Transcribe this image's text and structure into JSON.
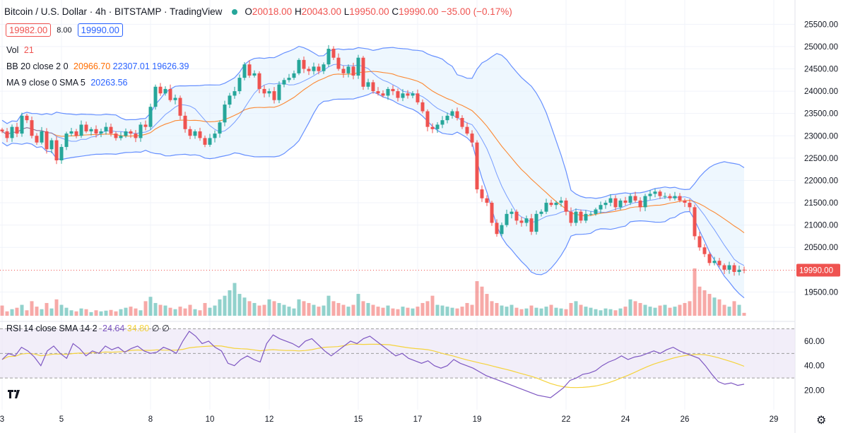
{
  "header": {
    "title": "Bitcoin / U.S. Dollar · 4h · BITSTAMP · TradingView",
    "ohlc": [
      {
        "label": "O",
        "value": "20018.00"
      },
      {
        "label": "H",
        "value": "20043.00"
      },
      {
        "label": "L",
        "value": "19950.00"
      },
      {
        "label": "C",
        "value": "19990.00"
      },
      {
        "label": "",
        "value": "−35.00 (−0.17%)"
      }
    ],
    "sell_price": "19982.00",
    "spread": "8.00",
    "buy_price": "19990.00"
  },
  "indicators": {
    "vol": {
      "name": "Vol",
      "value": "21"
    },
    "bb": {
      "name": "BB 20 close 2 0",
      "basis": "20966.70",
      "upper": "22307.01",
      "lower": "19626.39"
    },
    "ma": {
      "name": "MA 9 close 0 SMA 5",
      "value": "20263.56"
    },
    "rsi": {
      "name": "RSI 14 close SMA 14 2",
      "value": "24.64",
      "sma": "34.80",
      "extra1": "∅",
      "extra2": "∅"
    }
  },
  "colors": {
    "up": "#26a69a",
    "down": "#ef5350",
    "bb_line": "#2962ff",
    "bb_basis": "#ff6d00",
    "rsi_line": "#7e57c2",
    "rsi_sma": "#f5d33c",
    "rsi_band": "#ede7f6"
  },
  "icons": {
    "logo": "tradingview-logo-icon",
    "settings": "gear-icon",
    "status": "status-dot-icon"
  },
  "chart_data": {
    "type": "candlestick",
    "price_axis_ticks": [
      "25500.00",
      "25000.00",
      "24500.00",
      "24000.00",
      "23500.00",
      "23000.00",
      "22500.00",
      "22000.00",
      "21500.00",
      "21000.00",
      "20500.00",
      "19500.00"
    ],
    "price_range": [
      19000,
      25600
    ],
    "last_price_label": "19990.00",
    "last_price": 19990,
    "rsi_axis_ticks": [
      "60.00",
      "40.00",
      "20.00"
    ],
    "rsi_range": [
      10,
      72
    ],
    "rsi_bands": [
      30,
      50,
      70
    ],
    "x_ticks": [
      {
        "label": "3",
        "i": 0
      },
      {
        "label": "5",
        "i": 12
      },
      {
        "label": "8",
        "i": 30
      },
      {
        "label": "10",
        "i": 42
      },
      {
        "label": "12",
        "i": 54
      },
      {
        "label": "15",
        "i": 72
      },
      {
        "label": "17",
        "i": 84
      },
      {
        "label": "19",
        "i": 96
      },
      {
        "label": "22",
        "i": 114
      },
      {
        "label": "24",
        "i": 126
      },
      {
        "label": "26",
        "i": 138
      },
      {
        "label": "29",
        "i": 156
      }
    ],
    "n_bars": 151,
    "path": [
      23100,
      22950,
      23200,
      23050,
      23450,
      23350,
      23000,
      22850,
      23100,
      22700,
      22900,
      22450,
      22750,
      23050,
      23100,
      23000,
      23250,
      23100,
      23150,
      23050,
      23100,
      23200,
      23050,
      22950,
      23000,
      23100,
      23050,
      22950,
      23250,
      23200,
      23650,
      24100,
      23950,
      24050,
      23800,
      23850,
      23450,
      23150,
      23000,
      23100,
      22950,
      22800,
      22950,
      23050,
      23300,
      23700,
      23900,
      24000,
      24300,
      24600,
      24350,
      24400,
      24050,
      23950,
      24000,
      23800,
      24150,
      24250,
      24300,
      24400,
      24700,
      24500,
      24450,
      24550,
      24450,
      24600,
      24950,
      24750,
      24500,
      24400,
      24550,
      24350,
      24750,
      24100,
      24200,
      24000,
      23950,
      23900,
      24050,
      24000,
      23850,
      23950,
      23900,
      23950,
      23750,
      23550,
      23200,
      23150,
      23250,
      23350,
      23450,
      23550,
      23400,
      23200,
      23050,
      22850,
      21800,
      21600,
      21500,
      21050,
      20800,
      21000,
      21250,
      21300,
      21100,
      21050,
      21150,
      20850,
      21250,
      21300,
      21500,
      21450,
      21500,
      21550,
      21300,
      21050,
      21300,
      21100,
      21250,
      21250,
      21350,
      21450,
      21500,
      21600,
      21400,
      21550,
      21500,
      21650,
      21550,
      21400,
      21650,
      21700,
      21750,
      21650,
      21650,
      21600,
      21650,
      21550,
      21500,
      21400,
      20750,
      20500,
      20350,
      20150,
      20200,
      20100,
      20000,
      20100,
      19950,
      20000,
      19990
    ],
    "volume": [
      28,
      12,
      18,
      22,
      30,
      15,
      40,
      25,
      18,
      35,
      20,
      45,
      30,
      22,
      15,
      12,
      20,
      18,
      10,
      15,
      12,
      14,
      16,
      12,
      18,
      22,
      25,
      20,
      15,
      40,
      52,
      35,
      30,
      28,
      22,
      18,
      25,
      20,
      30,
      18,
      15,
      35,
      22,
      28,
      45,
      55,
      70,
      90,
      60,
      50,
      40,
      35,
      28,
      30,
      45,
      40,
      35,
      30,
      25,
      20,
      45,
      40,
      35,
      30,
      25,
      28,
      55,
      40,
      35,
      30,
      25,
      30,
      60,
      40,
      35,
      30,
      25,
      22,
      28,
      20,
      18,
      25,
      22,
      20,
      25,
      35,
      40,
      55,
      30,
      28,
      25,
      22,
      20,
      25,
      35,
      30,
      95,
      80,
      60,
      40,
      35,
      28,
      25,
      30,
      22,
      18,
      20,
      28,
      22,
      20,
      25,
      30,
      22,
      20,
      18,
      35,
      40,
      30,
      25,
      22,
      18,
      15,
      20,
      18,
      15,
      20,
      25,
      45,
      40,
      35,
      30,
      25,
      22,
      28,
      30,
      22,
      25,
      30,
      35,
      40,
      130,
      80,
      70,
      60,
      50,
      45,
      30,
      25,
      40,
      30,
      8
    ],
    "rsi_path": [
      45,
      50,
      48,
      55,
      52,
      47,
      40,
      52,
      56,
      50,
      46,
      58,
      54,
      48,
      52,
      50,
      56,
      53,
      55,
      51,
      54,
      56,
      52,
      50,
      51,
      55,
      53,
      50,
      60,
      68,
      64,
      58,
      60,
      55,
      52,
      42,
      40,
      45,
      48,
      45,
      43,
      58,
      65,
      62,
      60,
      58,
      55,
      60,
      62,
      57,
      52,
      48,
      52,
      56,
      60,
      58,
      62,
      64,
      60,
      56,
      52,
      48,
      50,
      46,
      44,
      42,
      44,
      40,
      38,
      40,
      45,
      42,
      40,
      38,
      35,
      32,
      30,
      28,
      26,
      24,
      22,
      20,
      18,
      16,
      15,
      14,
      18,
      22,
      28,
      30,
      33,
      34,
      36,
      40,
      43,
      45,
      48,
      45,
      47,
      48,
      50,
      52,
      50,
      53,
      55,
      52,
      50,
      48,
      46,
      40,
      33,
      27,
      25,
      26,
      24,
      25
    ]
  }
}
